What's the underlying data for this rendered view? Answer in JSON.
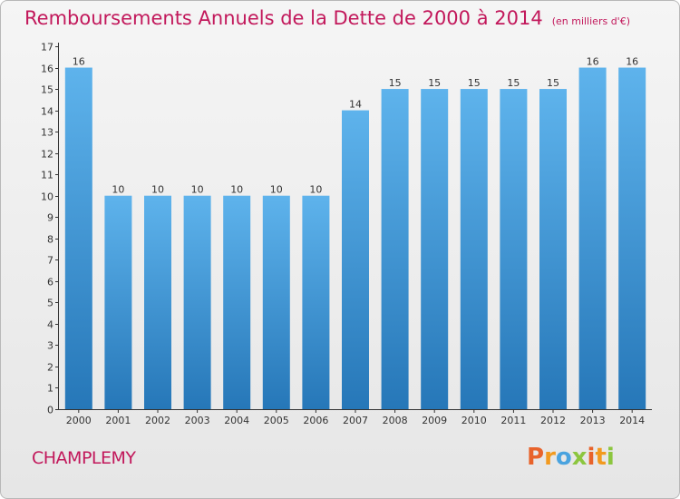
{
  "header": {
    "title": "Remboursements Annuels de la Dette de 2000 à 2014",
    "unit": "(en milliers d'€)"
  },
  "footer": {
    "commune": "CHAMPLEMY",
    "brand": "Proxiti"
  },
  "colors": {
    "title": "#c2185b",
    "bar_top": "#5eb3ec",
    "bar_bottom": "#2677b8",
    "brand_letters": [
      "#e8632b",
      "#f29a1f",
      "#4aa3df",
      "#8cc63f",
      "#e8632b",
      "#f29a1f",
      "#8cc63f"
    ]
  },
  "chart_data": {
    "type": "bar",
    "categories": [
      "2000",
      "2001",
      "2002",
      "2003",
      "2004",
      "2005",
      "2006",
      "2007",
      "2008",
      "2009",
      "2010",
      "2011",
      "2012",
      "2013",
      "2014"
    ],
    "values": [
      16,
      10,
      10,
      10,
      10,
      10,
      10,
      14,
      15,
      15,
      15,
      15,
      15,
      16,
      16
    ],
    "ylim": [
      0,
      17
    ],
    "yticks": [
      0,
      1,
      2,
      3,
      4,
      5,
      6,
      7,
      8,
      9,
      10,
      11,
      12,
      13,
      14,
      15,
      16,
      17
    ],
    "grid": false,
    "data_labels": true
  }
}
